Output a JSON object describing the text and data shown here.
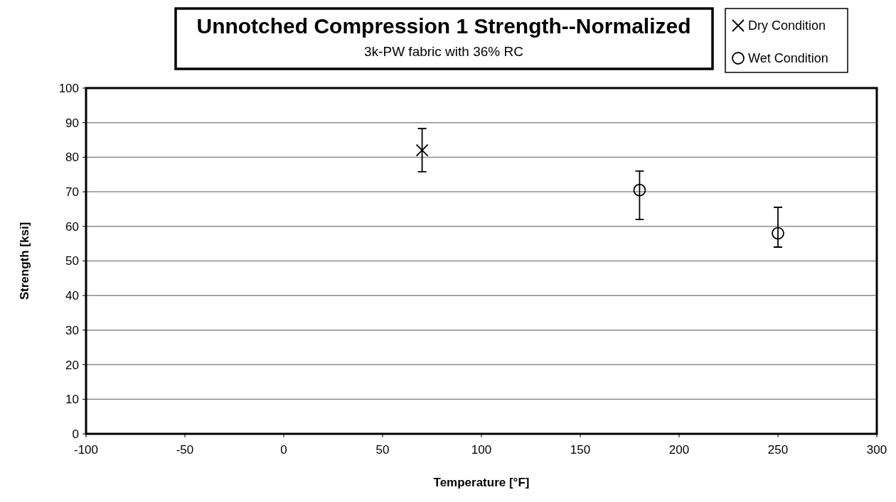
{
  "chart_data": {
    "type": "scatter",
    "title": "Unnotched Compression 1 Strength--Normalized",
    "subtitle": "3k-PW fabric with 36% RC",
    "xlabel": "Temperature [°F]",
    "ylabel": "Strength [ksi]",
    "xlim": [
      -100,
      300
    ],
    "xticks": [
      -100,
      -50,
      0,
      50,
      100,
      150,
      200,
      250,
      300
    ],
    "ylim": [
      0,
      100
    ],
    "yticks": [
      0,
      10,
      20,
      30,
      40,
      50,
      60,
      70,
      80,
      90,
      100
    ],
    "grid": "y",
    "legend": "top right",
    "series": [
      {
        "name": "Dry Condition",
        "color": "#000000",
        "marker": "cross",
        "x": [
          70
        ],
        "values": [
          82
        ],
        "errors": [
          [
            75.8,
            88.3
          ]
        ]
      },
      {
        "name": "Wet Condition",
        "color": "#000000",
        "marker": "circle",
        "x": [
          180,
          250
        ],
        "values": [
          70.5,
          58
        ],
        "errors": [
          [
            62,
            76
          ],
          [
            54,
            65.5
          ]
        ]
      }
    ]
  }
}
